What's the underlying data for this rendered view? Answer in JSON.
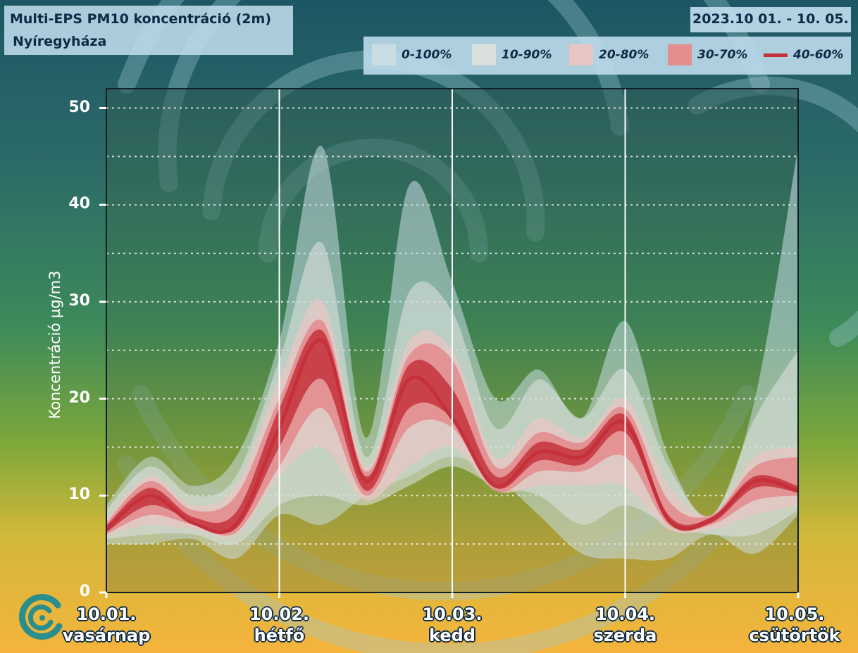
{
  "header": {
    "title": "Multi-EPS PM10 koncentráció (2m)",
    "subtitle": "Nyíregyháza",
    "date_range": "2023.10 01. - 10. 05."
  },
  "icons": {
    "logo": "swirl-logo-icon",
    "watermark": "swirl-watermark"
  },
  "colors": {
    "band_0_100": "#c9dde3",
    "band_10_90": "#d9e0dc",
    "band_20_80": "#e8c6c4",
    "band_30_70": "#e48d8f",
    "band_40_60": "#c9424a",
    "median": "#c6303a"
  },
  "chart_data": {
    "type": "area",
    "title": "Multi-EPS PM10 koncentráció (2m)",
    "subtitle": "Nyíregyháza",
    "ylabel": "Koncentráció µg/m3",
    "xlabel": "",
    "ylim": [
      0,
      52
    ],
    "y_ticks": [
      0,
      10,
      20,
      30,
      40,
      50
    ],
    "grid": true,
    "legend": "top-right",
    "legend_entries": [
      "0-100%",
      "10-90%",
      "20-80%",
      "30-70%",
      "40-60%"
    ],
    "x_ticks": [
      {
        "date": "10.01.",
        "day": "vasárnap"
      },
      {
        "date": "10.02.",
        "day": "hétfő"
      },
      {
        "date": "10.03.",
        "day": "kedd"
      },
      {
        "date": "10.04.",
        "day": "szerda"
      },
      {
        "date": "10.05.",
        "day": "csütörtök"
      }
    ],
    "x": [
      0,
      0.25,
      0.5,
      0.75,
      1,
      1.25,
      1.5,
      1.75,
      2,
      2.25,
      2.5,
      2.75,
      3,
      3.25,
      3.5,
      3.75,
      4
    ],
    "series": [
      {
        "name": "0-100%",
        "lower": [
          5,
          5,
          5.5,
          3.5,
          8,
          7,
          10,
          12,
          14,
          12,
          8,
          4,
          3.5,
          3.5,
          6,
          4,
          8
        ],
        "upper": [
          9,
          14,
          11,
          14,
          26,
          46,
          16,
          42,
          32,
          20,
          23,
          18,
          28,
          14,
          8,
          20,
          46
        ]
      },
      {
        "name": "10-90%",
        "lower": [
          5.5,
          6,
          6,
          5,
          9,
          10,
          9,
          11,
          13,
          11,
          10,
          7,
          9,
          7,
          6,
          6,
          8.5
        ],
        "upper": [
          8.5,
          13,
          10,
          12,
          24,
          36,
          14,
          31,
          29,
          17,
          22,
          18,
          23,
          13,
          8,
          18,
          25
        ]
      },
      {
        "name": "20-80%",
        "lower": [
          5.8,
          7,
          6.5,
          6,
          12,
          15,
          9.5,
          13,
          15,
          10.5,
          11,
          11,
          11,
          6.5,
          6.5,
          8,
          9
        ]
      },
      {
        "name": "30-70%",
        "lower": [
          6,
          8,
          7,
          6.2,
          13,
          19,
          10,
          17,
          17,
          10.5,
          12.5,
          12.5,
          14,
          7,
          7,
          9.5,
          10
        ]
      },
      {
        "name": "40-60%",
        "lower": [
          6.2,
          9,
          7.4,
          6.6,
          15,
          22,
          10.5,
          19,
          18,
          10.8,
          13.6,
          13.2,
          16.5,
          7.2,
          7.2,
          10.8,
          10.3
        ]
      },
      {
        "name": "median",
        "values": [
          6.5,
          10,
          7.2,
          7,
          17,
          26,
          11.5,
          22,
          18,
          11,
          14.5,
          14,
          17.5,
          7.5,
          7.5,
          11.5,
          10.5
        ]
      }
    ],
    "upper_extra": {
      "20-80%": [
        7.5,
        12,
        9,
        11,
        22,
        30,
        13,
        26,
        25,
        14,
        18,
        16,
        20,
        11,
        8,
        14,
        15
      ],
      "30-70%": [
        7.2,
        11.5,
        8.5,
        10,
        20,
        28,
        12.5,
        24.5,
        24,
        13,
        16.5,
        15.5,
        19,
        9.5,
        8,
        13,
        14
      ],
      "40-60%": [
        6.9,
        10.8,
        7.8,
        8.3,
        19,
        27,
        12,
        23.5,
        21,
        12,
        15.5,
        14.8,
        18.3,
        8,
        7.8,
        12,
        11
      ]
    }
  }
}
